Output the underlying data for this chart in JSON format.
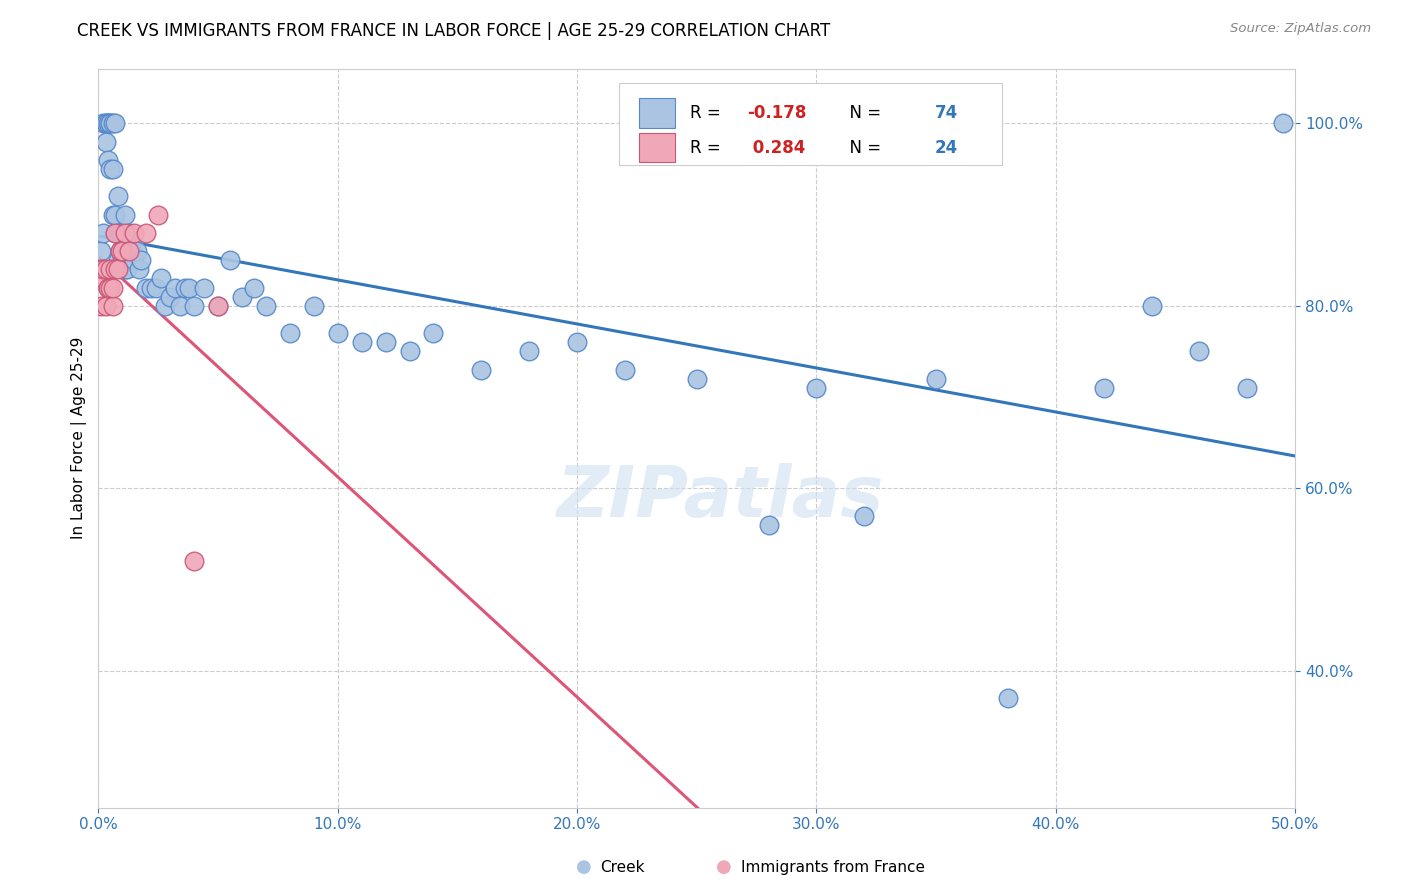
{
  "title": "CREEK VS IMMIGRANTS FROM FRANCE IN LABOR FORCE | AGE 25-29 CORRELATION CHART",
  "source": "Source: ZipAtlas.com",
  "ylabel": "In Labor Force | Age 25-29",
  "watermark": "ZIPatlas",
  "xlim": [
    0.0,
    0.5
  ],
  "ylim": [
    0.25,
    1.06
  ],
  "xticks": [
    0.0,
    0.1,
    0.2,
    0.3,
    0.4,
    0.5
  ],
  "yticks": [
    0.4,
    0.6,
    0.8,
    1.0
  ],
  "creek_color": "#aac4e2",
  "creek_edge": "#5588cc",
  "france_color": "#f0a8b8",
  "france_edge": "#cc5577",
  "trend_creek_color": "#3377bb",
  "trend_france_color": "#dd5577",
  "R_creek": -0.178,
  "N_creek": 74,
  "R_france": 0.284,
  "N_france": 24,
  "creek_x": [
    0.001,
    0.002,
    0.002,
    0.003,
    0.003,
    0.003,
    0.004,
    0.004,
    0.005,
    0.005,
    0.005,
    0.006,
    0.006,
    0.006,
    0.007,
    0.007,
    0.007,
    0.008,
    0.008,
    0.008,
    0.009,
    0.009,
    0.01,
    0.01,
    0.01,
    0.011,
    0.011,
    0.012,
    0.012,
    0.013,
    0.014,
    0.015,
    0.016,
    0.017,
    0.018,
    0.02,
    0.022,
    0.024,
    0.026,
    0.028,
    0.03,
    0.032,
    0.034,
    0.036,
    0.038,
    0.04,
    0.044,
    0.05,
    0.055,
    0.06,
    0.065,
    0.07,
    0.08,
    0.09,
    0.1,
    0.11,
    0.12,
    0.13,
    0.14,
    0.16,
    0.18,
    0.2,
    0.22,
    0.25,
    0.28,
    0.3,
    0.32,
    0.35,
    0.38,
    0.42,
    0.44,
    0.46,
    0.48,
    0.495
  ],
  "creek_y": [
    0.86,
    0.88,
    1.0,
    1.0,
    1.0,
    0.98,
    1.0,
    0.96,
    1.0,
    1.0,
    0.95,
    1.0,
    0.95,
    0.9,
    0.88,
    1.0,
    0.9,
    0.92,
    0.88,
    0.85,
    0.88,
    0.86,
    0.88,
    0.86,
    0.85,
    0.9,
    0.84,
    0.86,
    0.84,
    0.88,
    0.86,
    0.85,
    0.86,
    0.84,
    0.85,
    0.82,
    0.82,
    0.82,
    0.83,
    0.8,
    0.81,
    0.82,
    0.8,
    0.82,
    0.82,
    0.8,
    0.82,
    0.8,
    0.85,
    0.81,
    0.82,
    0.8,
    0.77,
    0.8,
    0.77,
    0.76,
    0.76,
    0.75,
    0.77,
    0.73,
    0.75,
    0.76,
    0.73,
    0.72,
    0.56,
    0.71,
    0.57,
    0.72,
    0.37,
    0.71,
    0.8,
    0.75,
    0.71,
    1.0
  ],
  "france_x": [
    0.001,
    0.001,
    0.002,
    0.002,
    0.003,
    0.003,
    0.004,
    0.004,
    0.005,
    0.005,
    0.006,
    0.006,
    0.007,
    0.007,
    0.008,
    0.009,
    0.01,
    0.011,
    0.013,
    0.015,
    0.02,
    0.025,
    0.04,
    0.05
  ],
  "france_y": [
    0.84,
    0.8,
    0.83,
    0.84,
    0.8,
    0.84,
    0.82,
    0.82,
    0.82,
    0.84,
    0.8,
    0.82,
    0.84,
    0.88,
    0.84,
    0.86,
    0.86,
    0.88,
    0.86,
    0.88,
    0.88,
    0.9,
    0.52,
    0.8
  ]
}
